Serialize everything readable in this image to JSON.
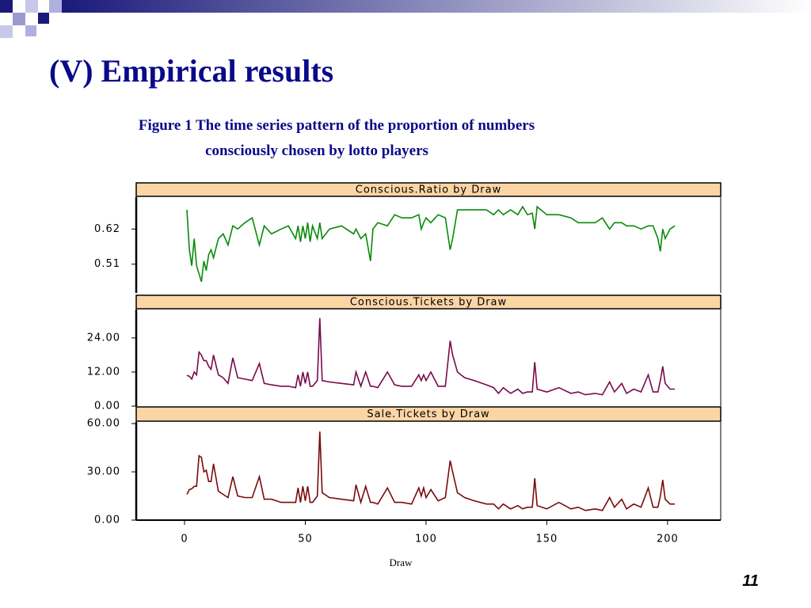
{
  "slide": {
    "title": "(V) Empirical results",
    "caption_line1": "Figure 1 The time series pattern of the proportion of numbers",
    "caption_line2": "consciously  chosen by lotto players",
    "page_number": "11"
  },
  "chart_data": [
    {
      "type": "line",
      "title": "Conscious.Ratio by  Draw",
      "color": "#0a8a0a",
      "xlim": [
        -20,
        222
      ],
      "ylim": [
        0.42,
        0.72
      ],
      "yticks": [
        0.51,
        0.62
      ],
      "x": [
        1,
        2,
        3,
        4,
        5,
        6,
        7,
        8,
        9,
        10,
        11,
        12,
        14,
        16,
        18,
        20,
        22,
        25,
        28,
        31,
        33,
        36,
        40,
        43,
        46,
        47,
        48,
        49,
        50,
        51,
        52,
        53,
        55,
        56,
        57,
        60,
        65,
        70,
        71,
        73,
        75,
        77,
        78,
        80,
        84,
        87,
        90,
        94,
        97,
        98,
        99,
        100,
        102,
        105,
        108,
        110,
        111,
        113,
        116,
        120,
        125,
        128,
        130,
        132,
        135,
        138,
        140,
        142,
        144,
        145,
        146,
        150,
        155,
        160,
        163,
        166,
        170,
        173,
        176,
        178,
        181,
        183,
        186,
        189,
        192,
        194,
        196,
        197,
        198,
        199,
        201,
        203
      ],
      "values": [
        0.68,
        0.555,
        0.505,
        0.59,
        0.505,
        0.48,
        0.455,
        0.52,
        0.49,
        0.54,
        0.555,
        0.53,
        0.59,
        0.605,
        0.57,
        0.63,
        0.62,
        0.64,
        0.655,
        0.57,
        0.63,
        0.605,
        0.62,
        0.63,
        0.59,
        0.63,
        0.58,
        0.63,
        0.59,
        0.64,
        0.58,
        0.63,
        0.59,
        0.64,
        0.59,
        0.62,
        0.63,
        0.605,
        0.62,
        0.59,
        0.605,
        0.52,
        0.62,
        0.64,
        0.63,
        0.665,
        0.655,
        0.655,
        0.665,
        0.62,
        0.64,
        0.655,
        0.64,
        0.665,
        0.655,
        0.555,
        0.59,
        0.68,
        0.68,
        0.68,
        0.68,
        0.665,
        0.68,
        0.665,
        0.68,
        0.665,
        0.69,
        0.665,
        0.67,
        0.62,
        0.69,
        0.665,
        0.665,
        0.655,
        0.64,
        0.64,
        0.64,
        0.655,
        0.62,
        0.64,
        0.64,
        0.63,
        0.63,
        0.62,
        0.63,
        0.63,
        0.59,
        0.55,
        0.62,
        0.59,
        0.62,
        0.63
      ]
    },
    {
      "type": "line",
      "title": "Conscious.Tickets by  Draw",
      "color": "#7a0a4a",
      "xlim": [
        -20,
        222
      ],
      "ylim": [
        0,
        34
      ],
      "yticks": [
        {
          "value": 0,
          "label": "0.00"
        },
        {
          "value": 12,
          "label": "12.00"
        },
        {
          "value": 24,
          "label": "24.00"
        }
      ],
      "x": [
        1,
        2,
        3,
        4,
        5,
        6,
        7,
        8,
        9,
        10,
        11,
        12,
        14,
        16,
        18,
        20,
        22,
        25,
        28,
        31,
        33,
        36,
        40,
        43,
        46,
        47,
        48,
        49,
        50,
        51,
        52,
        53,
        55,
        56,
        57,
        60,
        65,
        70,
        71,
        73,
        75,
        77,
        78,
        80,
        84,
        87,
        90,
        94,
        97,
        98,
        99,
        100,
        102,
        105,
        108,
        110,
        111,
        113,
        116,
        120,
        125,
        128,
        130,
        132,
        135,
        138,
        140,
        142,
        144,
        145,
        146,
        150,
        155,
        160,
        163,
        166,
        170,
        173,
        176,
        178,
        181,
        183,
        186,
        189,
        192,
        194,
        196,
        197,
        198,
        199,
        201,
        203
      ],
      "values": [
        10.8,
        10.5,
        9.5,
        12,
        11,
        19,
        18,
        16,
        16,
        14,
        13,
        18,
        11,
        10,
        8,
        17,
        10,
        9.5,
        9,
        15,
        8,
        7.5,
        7,
        7,
        6.5,
        11,
        7,
        12,
        8,
        12,
        7,
        7,
        9,
        31,
        9,
        8.5,
        8,
        7.5,
        12,
        7,
        12,
        7,
        7,
        6.5,
        12,
        7.5,
        7,
        7,
        11,
        9,
        11,
        9,
        12,
        7,
        7,
        23,
        18,
        12,
        10,
        9,
        7.5,
        6.5,
        4.5,
        6.5,
        4.5,
        6,
        4.5,
        5,
        5,
        15.5,
        6,
        5,
        6.5,
        4.5,
        5,
        4,
        4.5,
        4,
        8.5,
        5,
        8,
        4.5,
        6,
        5,
        11,
        5,
        5,
        9,
        14,
        8,
        6,
        6
      ]
    },
    {
      "type": "line",
      "title": "Sale.Tickets by  Draw",
      "color": "#7a0a0a",
      "xlim": [
        -20,
        222
      ],
      "ylim": [
        0,
        61
      ],
      "yticks": [
        {
          "value": 0,
          "label": "0.00"
        },
        {
          "value": 30,
          "label": "30.00"
        },
        {
          "value": 60,
          "label": "60.00"
        }
      ],
      "xticks": [
        0,
        50,
        100,
        150,
        200
      ],
      "xlabel": "Draw",
      "x": [
        1,
        2,
        3,
        4,
        5,
        6,
        7,
        8,
        9,
        10,
        11,
        12,
        14,
        16,
        18,
        20,
        22,
        25,
        28,
        31,
        33,
        36,
        40,
        43,
        46,
        47,
        48,
        49,
        50,
        51,
        52,
        53,
        55,
        56,
        57,
        60,
        65,
        70,
        71,
        73,
        75,
        77,
        78,
        80,
        84,
        87,
        90,
        94,
        97,
        98,
        99,
        100,
        102,
        105,
        108,
        110,
        111,
        113,
        116,
        120,
        125,
        128,
        130,
        132,
        135,
        138,
        140,
        142,
        144,
        145,
        146,
        150,
        155,
        160,
        163,
        166,
        170,
        173,
        176,
        178,
        181,
        183,
        186,
        189,
        192,
        194,
        196,
        197,
        198,
        199,
        201,
        203
      ],
      "values": [
        16,
        19,
        19.5,
        21,
        21,
        40,
        39,
        30,
        31,
        24,
        24,
        35,
        18,
        16,
        14,
        27,
        15,
        14,
        14,
        27,
        13,
        13,
        11,
        11,
        11,
        20,
        11,
        21,
        12,
        21,
        11,
        11,
        15,
        55,
        17,
        14,
        13,
        12,
        22,
        11,
        21,
        11,
        11,
        10,
        20,
        11,
        11,
        10,
        20,
        15,
        20,
        14,
        19,
        12,
        14,
        37,
        30,
        17,
        14,
        12,
        10,
        10,
        7,
        10,
        7,
        9,
        7,
        8,
        8,
        26,
        9,
        7,
        11,
        7,
        8,
        6,
        7,
        6,
        14,
        8,
        13,
        7,
        10,
        8,
        20,
        8,
        8,
        15,
        25,
        13,
        10,
        10
      ]
    }
  ]
}
